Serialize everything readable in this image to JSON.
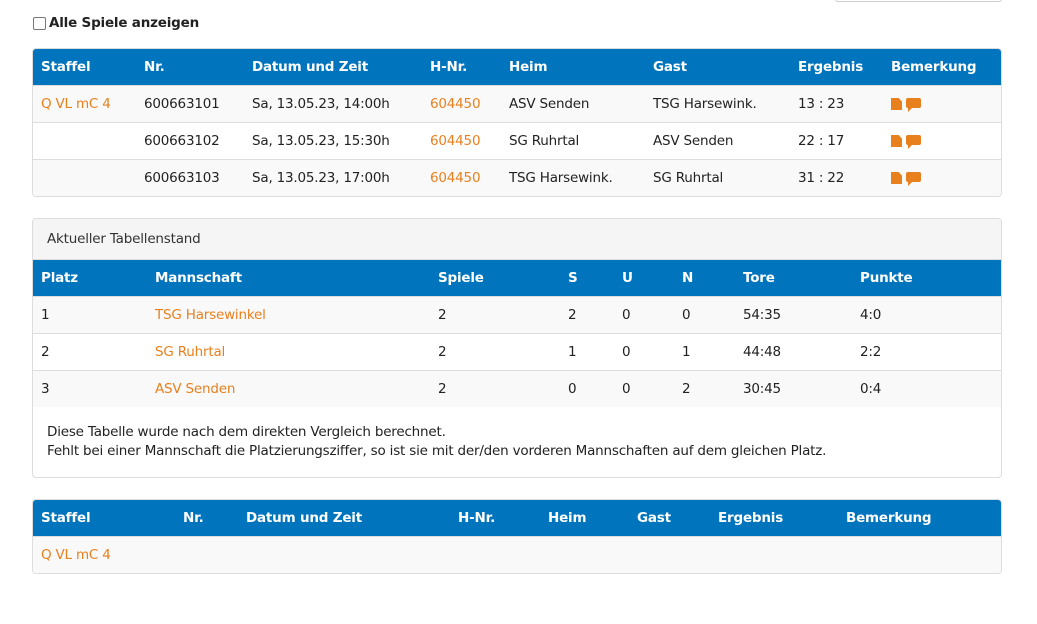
{
  "filter": {
    "show_all_label": "Alle Spiele anzeigen",
    "checked": false
  },
  "games": {
    "headers": [
      "Staffel",
      "Nr.",
      "Datum und Zeit",
      "H-Nr.",
      "Heim",
      "Gast",
      "Ergebnis",
      "Bemerkung"
    ],
    "rows": [
      {
        "staffel": "Q VL mC 4",
        "nr": "600663101",
        "datum": "Sa, 13.05.23, 14:00h",
        "hnr": "604450",
        "heim": "ASV Senden",
        "gast": "TSG Harsewink.",
        "ergebnis": "13 : 23",
        "icons": [
          "pdf-report-icon",
          "comment-icon"
        ]
      },
      {
        "staffel": "",
        "nr": "600663102",
        "datum": "Sa, 13.05.23, 15:30h",
        "hnr": "604450",
        "heim": "SG Ruhrtal",
        "gast": "ASV Senden",
        "ergebnis": "22 : 17",
        "icons": [
          "pdf-report-icon",
          "comment-icon"
        ]
      },
      {
        "staffel": "",
        "nr": "600663103",
        "datum": "Sa, 13.05.23, 17:00h",
        "hnr": "604450",
        "heim": "TSG Harsewink.",
        "gast": "SG Ruhrtal",
        "ergebnis": "31 : 22",
        "icons": [
          "pdf-report-icon",
          "comment-icon"
        ]
      }
    ]
  },
  "standings": {
    "title": "Aktueller Tabellenstand",
    "headers": [
      "Platz",
      "Mannschaft",
      "Spiele",
      "S",
      "U",
      "N",
      "Tore",
      "Punkte"
    ],
    "rows": [
      {
        "platz": "1",
        "team": "TSG Harsewinkel",
        "spiele": "2",
        "s": "2",
        "u": "0",
        "n": "0",
        "tore": "54:35",
        "punkte": "4:0"
      },
      {
        "platz": "2",
        "team": "SG Ruhrtal",
        "spiele": "2",
        "s": "1",
        "u": "0",
        "n": "1",
        "tore": "44:48",
        "punkte": "2:2"
      },
      {
        "platz": "3",
        "team": "ASV Senden",
        "spiele": "2",
        "s": "0",
        "u": "0",
        "n": "2",
        "tore": "30:45",
        "punkte": "0:4"
      }
    ],
    "note_line1": "Diese Tabelle wurde nach dem direkten Vergleich berechnet.",
    "note_line2": "Fehlt bei einer Mannschaft die Platzierungsziffer, so ist sie mit der/den vorderen Mannschaften auf dem gleichen Platz."
  },
  "games2": {
    "headers": [
      "Staffel",
      "Nr.",
      "Datum und Zeit",
      "H-Nr.",
      "Heim",
      "Gast",
      "Ergebnis",
      "Bemerkung"
    ],
    "rows": [
      {
        "staffel": "Q VL mC 4"
      }
    ]
  },
  "colors": {
    "header_bg": "#0074bc",
    "link": "#e8801e"
  }
}
